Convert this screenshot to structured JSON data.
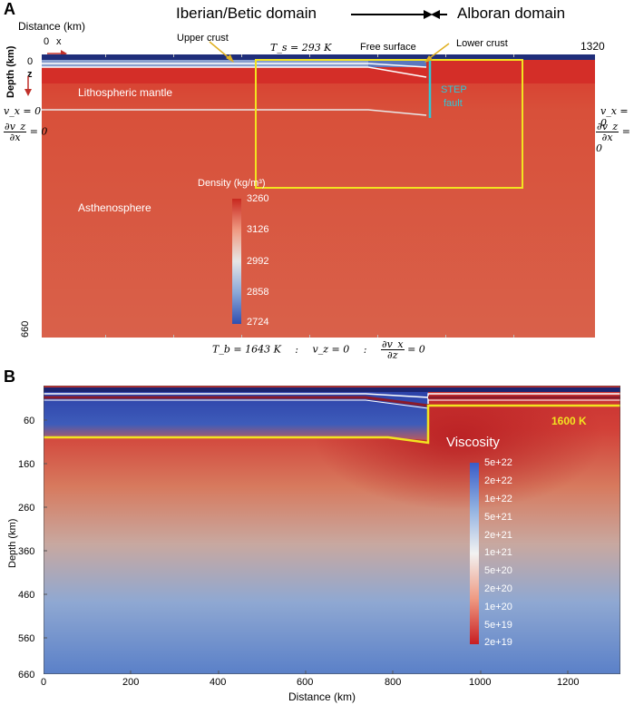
{
  "panel_a": {
    "letter": "A",
    "domain_left": "Iberian/Betic domain",
    "domain_right": "Alboran domain",
    "distance_label": "Distance (km)",
    "origin_label": "0",
    "x_label": "x",
    "x_max": "1320",
    "depth_label": "Depth (km)",
    "depth_zero": "0",
    "depth_max": "660",
    "z_label": "z",
    "upper_crust": "Upper crust",
    "lower_crust": "Lower crust",
    "free_surface": "Free surface",
    "lithospheric_mantle": "Lithospheric mantle",
    "asthenosphere": "Asthenosphere",
    "step_fault_line1": "STEP",
    "step_fault_line2": "fault",
    "top_bc": "T_s = 293 K",
    "left_bc_1": "v_x = 0",
    "left_bc_2_num": "∂v_z",
    "left_bc_2_den": "∂x",
    "left_bc_2_rhs": "= 0",
    "right_bc_1": "v_x = 0",
    "right_bc_2_num": "∂v_z",
    "right_bc_2_den": "∂x",
    "right_bc_2_rhs": "= 0",
    "bottom_bc_t": "T_b = 1643 K",
    "bottom_bc_sep1": ":",
    "bottom_bc_vz": "v_z = 0",
    "bottom_bc_sep2": ":",
    "bottom_bc_num": "∂v_x",
    "bottom_bc_den": "∂z",
    "bottom_bc_rhs": "= 0",
    "density_title": "Density (kg/m³)",
    "density_ticks": [
      "3260",
      "3126",
      "2992",
      "2858",
      "2724"
    ]
  },
  "panel_b": {
    "letter": "B",
    "ylabel": "Depth (km)",
    "xlabel": "Distance (km)",
    "y_ticks": [
      "60",
      "160",
      "260",
      "360",
      "460",
      "560",
      "660"
    ],
    "x_ticks": [
      "0",
      "200",
      "400",
      "600",
      "800",
      "1000",
      "1200"
    ],
    "isotherm_label": "1600 K",
    "viscosity_title": "Viscosity",
    "viscosity_ticks": [
      "5e+22",
      "2e+22",
      "1e+22",
      "5e+21",
      "2e+21",
      "1e+21",
      "5e+20",
      "2e+20",
      "1e+20",
      "5e+19",
      "2e+19"
    ]
  },
  "colors": {
    "mantle": "#d85f45",
    "lithosphere": "#d3322a",
    "crust": "#3a55a8",
    "box": "#f2e420",
    "step": "#2ec8d8",
    "arrow": "#e0b020"
  }
}
